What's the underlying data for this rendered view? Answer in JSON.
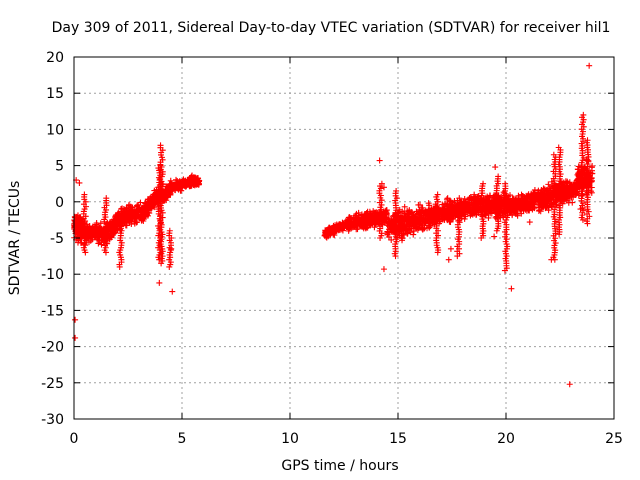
{
  "chart_data": {
    "type": "scatter",
    "title": "Day 309 of 2011, Sidereal Day-to-day VTEC variation (SDTVAR) for receiver hil1",
    "xlabel": "GPS time / hours",
    "ylabel": "SDTVAR / TECUs",
    "xlim": [
      0,
      25
    ],
    "ylim": [
      -30,
      20
    ],
    "xticks": [
      0,
      5,
      10,
      15,
      20,
      25
    ],
    "yticks": [
      -30,
      -25,
      -20,
      -15,
      -10,
      -5,
      0,
      5,
      10,
      15,
      20
    ],
    "grid": true,
    "marker": "+",
    "color": "#ff0000",
    "segments": [
      {
        "start": 0.0,
        "end": 0.5,
        "center_start": -3.0,
        "center_end": -4.2,
        "spread": 2.5,
        "density": 55
      },
      {
        "start": 0.5,
        "end": 1.5,
        "center_start": -4.2,
        "center_end": -4.5,
        "spread": 1.7,
        "density": 45
      },
      {
        "start": 1.5,
        "end": 2.3,
        "center_start": -4.5,
        "center_end": -2.0,
        "spread": 2.0,
        "density": 45
      },
      {
        "start": 2.3,
        "end": 3.2,
        "center_start": -2.0,
        "center_end": -1.5,
        "spread": 1.8,
        "density": 40
      },
      {
        "start": 3.2,
        "end": 4.1,
        "center_start": -1.5,
        "center_end": 1.5,
        "spread": 1.6,
        "density": 45
      },
      {
        "start": 4.1,
        "end": 4.5,
        "center_start": 1.0,
        "center_end": 2.0,
        "spread": 1.5,
        "density": 40
      },
      {
        "start": 4.5,
        "end": 5.8,
        "center_start": 2.0,
        "center_end": 3.0,
        "spread": 1.0,
        "density": 45
      },
      {
        "start": 11.6,
        "end": 12.7,
        "center_start": -4.5,
        "center_end": -3.0,
        "spread": 0.8,
        "density": 40
      },
      {
        "start": 12.7,
        "end": 14.5,
        "center_start": -3.0,
        "center_end": -2.0,
        "spread": 1.5,
        "density": 40
      },
      {
        "start": 14.5,
        "end": 16.5,
        "center_start": -3.5,
        "center_end": -2.0,
        "spread": 2.5,
        "density": 45
      },
      {
        "start": 16.5,
        "end": 18.5,
        "center_start": -2.0,
        "center_end": -0.5,
        "spread": 2.0,
        "density": 45
      },
      {
        "start": 18.5,
        "end": 20.2,
        "center_start": -0.5,
        "center_end": -0.5,
        "spread": 2.2,
        "density": 45
      },
      {
        "start": 20.2,
        "end": 21.5,
        "center_start": -0.8,
        "center_end": 0.5,
        "spread": 1.8,
        "density": 45
      },
      {
        "start": 21.5,
        "end": 22.6,
        "center_start": 0.0,
        "center_end": 1.5,
        "spread": 2.3,
        "density": 50
      },
      {
        "start": 22.6,
        "end": 23.3,
        "center_start": 1.0,
        "center_end": 2.0,
        "spread": 2.0,
        "density": 45
      },
      {
        "start": 23.3,
        "end": 24.0,
        "center_start": 3.0,
        "center_end": 3.5,
        "spread": 3.0,
        "density": 55
      }
    ],
    "spikes": [
      {
        "x": 0.5,
        "ymin": -7.0,
        "ymax": 1.0
      },
      {
        "x": 1.45,
        "ymin": -7.0,
        "ymax": 0.5
      },
      {
        "x": 2.15,
        "ymin": -9.0,
        "ymax": -1.0
      },
      {
        "x": 3.95,
        "ymin": -8.0,
        "ymax": 5.0
      },
      {
        "x": 4.05,
        "ymin": -8.5,
        "ymax": 7.8
      },
      {
        "x": 4.45,
        "ymin": -9.0,
        "ymax": -4.0
      },
      {
        "x": 14.2,
        "ymin": -5.0,
        "ymax": 2.5
      },
      {
        "x": 14.9,
        "ymin": -7.5,
        "ymax": 1.5
      },
      {
        "x": 16.8,
        "ymin": -7.0,
        "ymax": 1.0
      },
      {
        "x": 17.8,
        "ymin": -7.5,
        "ymax": 0.5
      },
      {
        "x": 18.9,
        "ymin": -5.0,
        "ymax": 2.5
      },
      {
        "x": 19.6,
        "ymin": -4.0,
        "ymax": 3.5
      },
      {
        "x": 20.0,
        "ymin": -9.5,
        "ymax": 2.5
      },
      {
        "x": 22.25,
        "ymin": -8.0,
        "ymax": 6.5
      },
      {
        "x": 22.5,
        "ymin": -4.5,
        "ymax": 7.5
      },
      {
        "x": 23.55,
        "ymin": -2.5,
        "ymax": 12.0
      },
      {
        "x": 23.8,
        "ymin": -3.0,
        "ymax": 8.5
      }
    ],
    "outliers": [
      {
        "x": 0.05,
        "y": -16.3
      },
      {
        "x": 0.05,
        "y": -18.8
      },
      {
        "x": 0.1,
        "y": 3.0
      },
      {
        "x": 0.25,
        "y": 2.6
      },
      {
        "x": 3.95,
        "y": -11.2
      },
      {
        "x": 4.55,
        "y": -12.4
      },
      {
        "x": 4.5,
        "y": -6.5
      },
      {
        "x": 14.15,
        "y": 5.7
      },
      {
        "x": 14.35,
        "y": 2.0
      },
      {
        "x": 14.35,
        "y": -9.3
      },
      {
        "x": 16.9,
        "y": -3.0
      },
      {
        "x": 17.3,
        "y": 0.5
      },
      {
        "x": 17.35,
        "y": -8.0
      },
      {
        "x": 17.45,
        "y": -6.5
      },
      {
        "x": 19.45,
        "y": -4.8
      },
      {
        "x": 19.5,
        "y": 4.8
      },
      {
        "x": 20.25,
        "y": -12.0
      },
      {
        "x": 21.1,
        "y": -2.8
      },
      {
        "x": 22.1,
        "y": -8.0
      },
      {
        "x": 22.95,
        "y": -25.2
      },
      {
        "x": 23.45,
        "y": -1.0
      },
      {
        "x": 23.85,
        "y": 18.8
      }
    ]
  }
}
